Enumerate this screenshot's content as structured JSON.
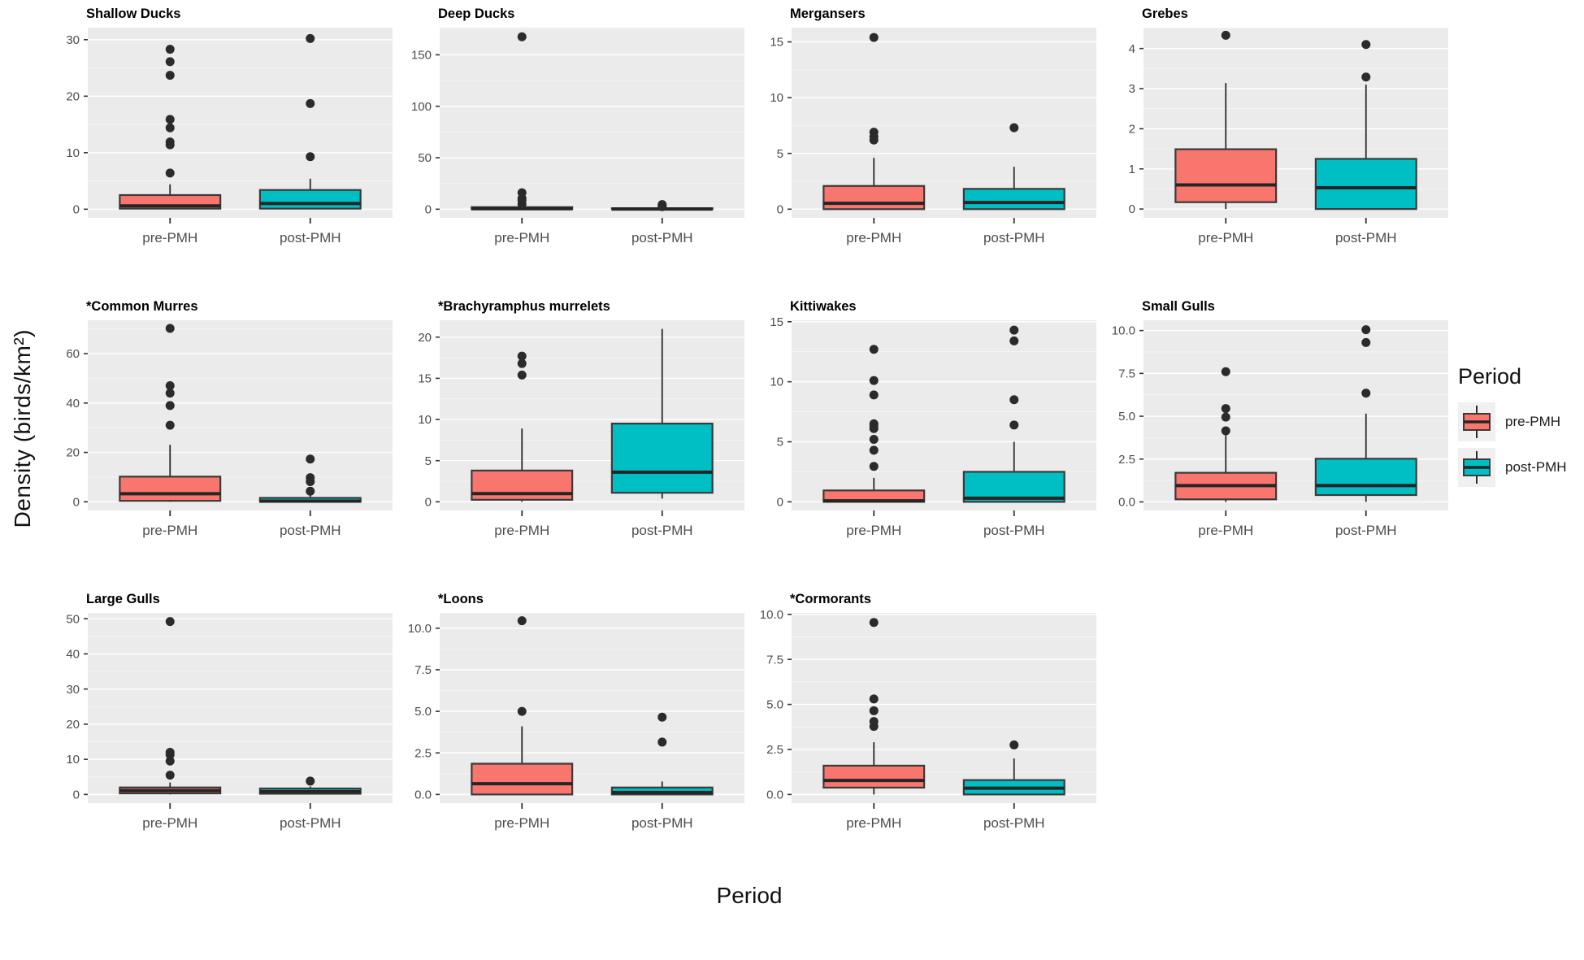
{
  "figure": {
    "y_axis_label": "Density (birds/km²)",
    "x_axis_label": "Period",
    "legend": {
      "title": "Period",
      "entries": [
        {
          "label": "pre-PMH",
          "color": "#F8766D"
        },
        {
          "label": "post-PMH",
          "color": "#00BFC4"
        }
      ]
    },
    "colors": {
      "pre": "#F8766D",
      "post": "#00BFC4",
      "panel_bg": "#EBEBEB",
      "grid_major": "#FFFFFF",
      "grid_minor": "rgba(255,255,255,0.55)",
      "box_stroke": "#3a3a3a",
      "median": "#252525",
      "outlier": "#2b2b2b",
      "tick_text": "#4D4D4D",
      "tick_mark": "#333333"
    }
  },
  "chart_data": [
    {
      "type": "box",
      "title": "Shallow Ducks",
      "yticks": [
        0,
        10,
        20,
        30
      ],
      "ytick_labels": [
        "0",
        "10",
        "20",
        "30"
      ],
      "ylim": [
        -1.53,
        32.13
      ],
      "categories": [
        "pre-PMH",
        "post-PMH"
      ],
      "series": [
        {
          "name": "pre-PMH",
          "period": "pre",
          "q1": 0.1,
          "median": 0.6,
          "q3": 2.5,
          "whisker_low": 0.0,
          "whisker_high": 4.4,
          "outliers": [
            6.4,
            11.4,
            11.9,
            14.4,
            15.9,
            23.7,
            26.1,
            28.3
          ]
        },
        {
          "name": "post-PMH",
          "period": "post",
          "q1": 0.1,
          "median": 1.0,
          "q3": 3.4,
          "whisker_low": 0.0,
          "whisker_high": 5.4,
          "outliers": [
            9.3,
            18.7,
            30.2
          ]
        }
      ]
    },
    {
      "type": "box",
      "title": "Deep Ducks",
      "yticks": [
        0,
        50,
        100,
        150
      ],
      "ytick_labels": [
        "0",
        "50",
        "100",
        "150"
      ],
      "ylim": [
        -8.4,
        176.4
      ],
      "categories": [
        "pre-PMH",
        "post-PMH"
      ],
      "series": [
        {
          "name": "pre-PMH",
          "period": "pre",
          "q1": 0.0,
          "median": 0.5,
          "q3": 2.0,
          "whisker_low": 0.0,
          "whisker_high": 3.0,
          "outliers": [
            4.7,
            8.5,
            10.5,
            16.0,
            167.5
          ]
        },
        {
          "name": "post-PMH",
          "period": "post",
          "q1": 0.0,
          "median": 0.2,
          "q3": 0.9,
          "whisker_low": 0.0,
          "whisker_high": 1.4,
          "outliers": [
            2.5,
            3.5,
            4.5
          ]
        }
      ]
    },
    {
      "type": "box",
      "title": "Mergansers",
      "yticks": [
        0,
        5,
        10,
        15
      ],
      "ytick_labels": [
        "0",
        "5",
        "10",
        "15"
      ],
      "ylim": [
        -0.78,
        16.28
      ],
      "categories": [
        "pre-PMH",
        "post-PMH"
      ],
      "series": [
        {
          "name": "pre-PMH",
          "period": "pre",
          "q1": 0.0,
          "median": 0.52,
          "q3": 2.08,
          "whisker_low": 0.0,
          "whisker_high": 4.6,
          "outliers": [
            6.2,
            6.5,
            6.9,
            15.4
          ]
        },
        {
          "name": "post-PMH",
          "period": "post",
          "q1": 0.0,
          "median": 0.6,
          "q3": 1.82,
          "whisker_low": 0.0,
          "whisker_high": 3.8,
          "outliers": [
            7.3
          ]
        }
      ]
    },
    {
      "type": "box",
      "title": "Grebes",
      "yticks": [
        0,
        1,
        2,
        3,
        4
      ],
      "ytick_labels": [
        "0",
        "1",
        "2",
        "3",
        "4"
      ],
      "ylim": [
        -0.22,
        4.52
      ],
      "categories": [
        "pre-PMH",
        "post-PMH"
      ],
      "series": [
        {
          "name": "pre-PMH",
          "period": "pre",
          "q1": 0.17,
          "median": 0.6,
          "q3": 1.49,
          "whisker_low": 0.0,
          "whisker_high": 3.14,
          "outliers": [
            4.33
          ]
        },
        {
          "name": "post-PMH",
          "period": "post",
          "q1": 0.0,
          "median": 0.53,
          "q3": 1.25,
          "whisker_low": 0.0,
          "whisker_high": 3.1,
          "outliers": [
            3.29,
            4.1
          ]
        }
      ]
    },
    {
      "type": "box",
      "title": "*Common Murres",
      "yticks": [
        0,
        20,
        40,
        60
      ],
      "ytick_labels": [
        "0",
        "20",
        "40",
        "60"
      ],
      "ylim": [
        -3.5,
        73.5
      ],
      "categories": [
        "pre-PMH",
        "post-PMH"
      ],
      "series": [
        {
          "name": "pre-PMH",
          "period": "pre",
          "q1": 0.4,
          "median": 3.3,
          "q3": 10.2,
          "whisker_low": 0.0,
          "whisker_high": 23.1,
          "outliers": [
            31.0,
            39.0,
            44.0,
            47.0,
            70.2
          ]
        },
        {
          "name": "post-PMH",
          "period": "post",
          "q1": 0.0,
          "median": 0.3,
          "q3": 1.6,
          "whisker_low": 0.0,
          "whisker_high": 2.7,
          "outliers": [
            4.3,
            8.2,
            9.8,
            17.3
          ]
        }
      ]
    },
    {
      "type": "box",
      "title": "*Brachyramphus murrelets",
      "yticks": [
        0,
        5,
        10,
        15,
        20
      ],
      "ytick_labels": [
        "0",
        "5",
        "10",
        "15",
        "20"
      ],
      "ylim": [
        -1.05,
        22.05
      ],
      "categories": [
        "pre-PMH",
        "post-PMH"
      ],
      "series": [
        {
          "name": "pre-PMH",
          "period": "pre",
          "q1": 0.25,
          "median": 1.0,
          "q3": 3.8,
          "whisker_low": 0.0,
          "whisker_high": 8.9,
          "outliers": [
            15.4,
            16.8,
            17.7
          ]
        },
        {
          "name": "post-PMH",
          "period": "post",
          "q1": 1.1,
          "median": 3.6,
          "q3": 9.5,
          "whisker_low": 0.4,
          "whisker_high": 21.0,
          "outliers": []
        }
      ]
    },
    {
      "type": "box",
      "title": "Kittiwakes",
      "yticks": [
        0,
        5,
        10,
        15
      ],
      "ytick_labels": [
        "0",
        "5",
        "10",
        "15"
      ],
      "ylim": [
        -0.72,
        15.12
      ],
      "categories": [
        "pre-PMH",
        "post-PMH"
      ],
      "series": [
        {
          "name": "pre-PMH",
          "period": "pre",
          "q1": 0.0,
          "median": 0.08,
          "q3": 0.95,
          "whisker_low": 0.0,
          "whisker_high": 2.0,
          "outliers": [
            2.95,
            4.3,
            5.2,
            6.1,
            6.3,
            6.5,
            8.9,
            10.1,
            12.7
          ]
        },
        {
          "name": "post-PMH",
          "period": "post",
          "q1": 0.0,
          "median": 0.3,
          "q3": 2.5,
          "whisker_low": 0.0,
          "whisker_high": 5.0,
          "outliers": [
            6.4,
            8.5,
            13.4,
            14.3
          ]
        }
      ]
    },
    {
      "type": "box",
      "title": "Small Gulls",
      "yticks": [
        0.0,
        2.5,
        5.0,
        7.5,
        10.0
      ],
      "ytick_labels": [
        "0.0",
        "2.5",
        "5.0",
        "7.5",
        "10.0"
      ],
      "ylim": [
        -0.5,
        10.6
      ],
      "categories": [
        "pre-PMH",
        "post-PMH"
      ],
      "series": [
        {
          "name": "pre-PMH",
          "period": "pre",
          "q1": 0.15,
          "median": 0.95,
          "q3": 1.7,
          "whisker_low": 0.0,
          "whisker_high": 3.9,
          "outliers": [
            4.15,
            4.95,
            5.45,
            7.6
          ]
        },
        {
          "name": "post-PMH",
          "period": "post",
          "q1": 0.4,
          "median": 0.95,
          "q3": 2.52,
          "whisker_low": 0.0,
          "whisker_high": 5.15,
          "outliers": [
            6.35,
            9.3,
            10.05
          ]
        }
      ]
    },
    {
      "type": "box",
      "title": "Large Gulls",
      "yticks": [
        0,
        10,
        20,
        30,
        40,
        50
      ],
      "ytick_labels": [
        "0",
        "10",
        "20",
        "30",
        "40",
        "50"
      ],
      "ylim": [
        -2.46,
        51.66
      ],
      "categories": [
        "pre-PMH",
        "post-PMH"
      ],
      "series": [
        {
          "name": "pre-PMH",
          "period": "pre",
          "q1": 0.3,
          "median": 1.1,
          "q3": 2.0,
          "whisker_low": 0.0,
          "whisker_high": 3.4,
          "outliers": [
            5.5,
            9.5,
            11.3,
            12.0,
            49.2
          ]
        },
        {
          "name": "post-PMH",
          "period": "post",
          "q1": 0.2,
          "median": 0.8,
          "q3": 1.7,
          "whisker_low": 0.0,
          "whisker_high": 2.3,
          "outliers": [
            3.8
          ]
        }
      ]
    },
    {
      "type": "box",
      "title": "*Loons",
      "yticks": [
        0.0,
        2.5,
        5.0,
        7.5,
        10.0
      ],
      "ytick_labels": [
        "0.0",
        "2.5",
        "5.0",
        "7.5",
        "10.0"
      ],
      "ylim": [
        -0.52,
        10.92
      ],
      "categories": [
        "pre-PMH",
        "post-PMH"
      ],
      "series": [
        {
          "name": "pre-PMH",
          "period": "pre",
          "q1": 0.0,
          "median": 0.65,
          "q3": 1.85,
          "whisker_low": 0.0,
          "whisker_high": 4.1,
          "outliers": [
            5.0,
            10.45
          ]
        },
        {
          "name": "post-PMH",
          "period": "post",
          "q1": 0.0,
          "median": 0.12,
          "q3": 0.42,
          "whisker_low": 0.0,
          "whisker_high": 0.78,
          "outliers": [
            3.15,
            4.65
          ]
        }
      ]
    },
    {
      "type": "box",
      "title": "*Cormorants",
      "yticks": [
        0.0,
        2.5,
        5.0,
        7.5,
        10.0
      ],
      "ytick_labels": [
        "0.0",
        "2.5",
        "5.0",
        "7.5",
        "10.0"
      ],
      "ylim": [
        -0.48,
        10.08
      ],
      "categories": [
        "pre-PMH",
        "post-PMH"
      ],
      "series": [
        {
          "name": "pre-PMH",
          "period": "pre",
          "q1": 0.38,
          "median": 0.78,
          "q3": 1.6,
          "whisker_low": 0.0,
          "whisker_high": 2.9,
          "outliers": [
            3.78,
            4.05,
            4.65,
            5.3,
            9.55
          ]
        },
        {
          "name": "post-PMH",
          "period": "post",
          "q1": 0.0,
          "median": 0.35,
          "q3": 0.8,
          "whisker_low": 0.0,
          "whisker_high": 2.0,
          "outliers": [
            2.75
          ]
        }
      ]
    }
  ]
}
